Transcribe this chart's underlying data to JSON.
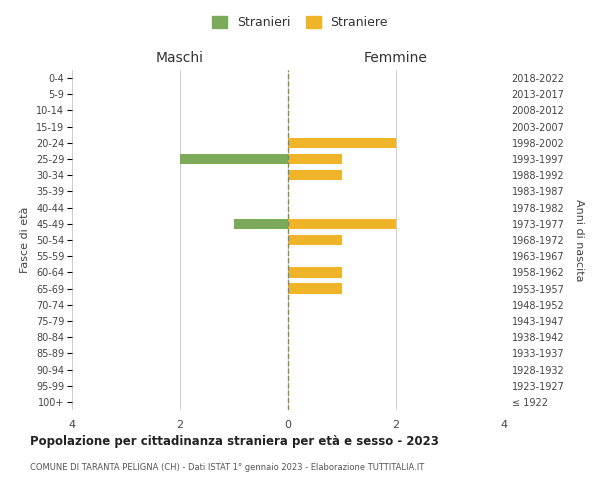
{
  "age_groups": [
    "100+",
    "95-99",
    "90-94",
    "85-89",
    "80-84",
    "75-79",
    "70-74",
    "65-69",
    "60-64",
    "55-59",
    "50-54",
    "45-49",
    "40-44",
    "35-39",
    "30-34",
    "25-29",
    "20-24",
    "15-19",
    "10-14",
    "5-9",
    "0-4"
  ],
  "birth_years": [
    "≤ 1922",
    "1923-1927",
    "1928-1932",
    "1933-1937",
    "1938-1942",
    "1943-1947",
    "1948-1952",
    "1953-1957",
    "1958-1962",
    "1963-1967",
    "1968-1972",
    "1973-1977",
    "1978-1982",
    "1983-1987",
    "1988-1992",
    "1993-1997",
    "1998-2002",
    "2003-2007",
    "2008-2012",
    "2013-2017",
    "2018-2022"
  ],
  "maschi_stranieri": [
    0,
    0,
    0,
    0,
    0,
    0,
    0,
    0,
    0,
    0,
    0,
    1,
    0,
    0,
    0,
    2,
    0,
    0,
    0,
    0,
    0
  ],
  "femmine_straniere": [
    0,
    0,
    0,
    0,
    0,
    0,
    0,
    1,
    1,
    0,
    1,
    2,
    0,
    0,
    1,
    1,
    2,
    0,
    0,
    0,
    0
  ],
  "color_maschi": "#7aaa5a",
  "color_femmine": "#f0b429",
  "xlim": 4,
  "title": "Popolazione per cittadinanza straniera per età e sesso - 2023",
  "subtitle": "COMUNE DI TARANTA PELIGNA (CH) - Dati ISTAT 1° gennaio 2023 - Elaborazione TUTTITALIA.IT",
  "ylabel_left": "Fasce di età",
  "ylabel_right": "Anni di nascita",
  "xlabel_left": "Maschi",
  "xlabel_right": "Femmine",
  "legend_stranieri": "Stranieri",
  "legend_straniere": "Straniere",
  "background_color": "#ffffff",
  "grid_color": "#cccccc",
  "center_line_color": "#888855"
}
